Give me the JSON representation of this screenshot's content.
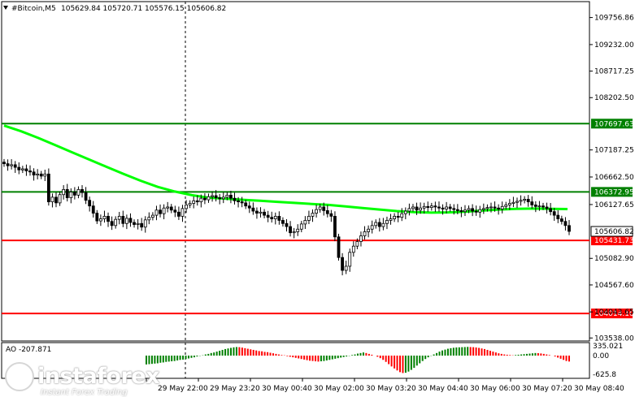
{
  "header": {
    "symbol": "#Bitcoin,M5",
    "ohlc": "105629.84 105720.71 105576.15 105606.82"
  },
  "indicator": {
    "label": "AO -207.871",
    "ticks": [
      "335.021",
      "0.00",
      "-625.8"
    ],
    "ao_values": [
      -310,
      -300,
      -290,
      -280,
      -270,
      -250,
      -240,
      -220,
      -210,
      -200,
      -190,
      -170,
      -150,
      -140,
      -120,
      -100,
      -80,
      -60,
      -30,
      -10,
      10,
      40,
      60,
      90,
      110,
      140,
      170,
      200,
      230,
      250,
      270,
      290,
      300,
      295,
      280,
      260,
      240,
      220,
      200,
      180,
      160,
      150,
      130,
      120,
      100,
      80,
      60,
      40,
      20,
      10,
      -20,
      -40,
      -60,
      -80,
      -100,
      -120,
      -140,
      -160,
      -180,
      -190,
      -200,
      -210,
      -200,
      -190,
      -170,
      -150,
      -130,
      -110,
      -90,
      -70,
      -50,
      -30,
      -10,
      20,
      40,
      70,
      90,
      110,
      90,
      60,
      30,
      0,
      -40,
      -90,
      -150,
      -220,
      -300,
      -380,
      -450,
      -520,
      -580,
      -610,
      -600,
      -560,
      -500,
      -430,
      -350,
      -270,
      -190,
      -120,
      -60,
      -10,
      40,
      90,
      140,
      180,
      210,
      240,
      260,
      275,
      285,
      290,
      295,
      300,
      305,
      300,
      295,
      285,
      270,
      250,
      230,
      200,
      170,
      140,
      110,
      80,
      60,
      40,
      30,
      20,
      10,
      20,
      30,
      40,
      50,
      60,
      70,
      80,
      90,
      85,
      75,
      60,
      40,
      20,
      0,
      -30,
      -70,
      -110,
      -150,
      -190,
      -207.871
    ]
  },
  "price_axis": {
    "ticks": [
      "109756.86",
      "109232.00",
      "108717.25",
      "108202.50",
      "107187.25",
      "106662.50",
      "106127.65",
      "105082.90",
      "104567.60",
      "104043.65",
      "103538.00"
    ],
    "levels": [
      {
        "price": 107697.63,
        "label": "107697.63",
        "color": "#008000"
      },
      {
        "price": 106372.95,
        "label": "106372.95",
        "color": "#008000"
      },
      {
        "price": 105431.73,
        "label": "105431.73",
        "color": "#ff0000"
      },
      {
        "price": 104014.1,
        "label": "104014.10",
        "color": "#ff0000"
      }
    ],
    "current": {
      "price": 105606.82,
      "label": "105606.82"
    }
  },
  "time_axis": {
    "labels": [
      "29 May 22:00",
      "29 May 23:20",
      "30 May 00:40",
      "30 May 02:00",
      "30 May 03:20",
      "30 May 04:40",
      "30 May 06:00",
      "30 May 07:20",
      "30 May 08:40"
    ]
  },
  "chart_data": {
    "type": "candlestick",
    "title": "#Bitcoin,M5",
    "timeframe": "M5",
    "ylim": [
      103538.0,
      109960.0
    ],
    "price_ticks": [
      109756.86,
      109232.0,
      108717.25,
      108202.5,
      107187.25,
      106662.5,
      106127.65,
      105082.9,
      104567.6,
      104043.65,
      103538.0
    ],
    "x_labels": [
      "29 May 22:00",
      "29 May 23:20",
      "30 May 00:40",
      "30 May 02:00",
      "30 May 03:20",
      "30 May 04:40",
      "30 May 06:00",
      "30 May 07:20",
      "30 May 08:40"
    ],
    "horizontal_levels": [
      {
        "price": 107697.63,
        "color": "#008000"
      },
      {
        "price": 106372.95,
        "color": "#008000"
      },
      {
        "price": 105431.73,
        "color": "#ff0000"
      },
      {
        "price": 104014.1,
        "color": "#ff0000"
      }
    ],
    "close_prices": [
      106920,
      106880,
      106900,
      106850,
      106800,
      106820,
      106780,
      106760,
      106700,
      106720,
      106680,
      106720,
      106180,
      106270,
      106160,
      106320,
      106420,
      106260,
      106370,
      106310,
      106420,
      106360,
      106210,
      106100,
      105960,
      105810,
      105850,
      105900,
      105800,
      105720,
      105840,
      105900,
      105760,
      105860,
      105780,
      105740,
      105760,
      105690,
      105830,
      105880,
      105920,
      106020,
      105950,
      106060,
      106080,
      106020,
      105980,
      105900,
      106050,
      106120,
      106150,
      106200,
      106180,
      106250,
      106220,
      106280,
      106300,
      106260,
      106240,
      106270,
      106310,
      106250,
      106200,
      106180,
      106160,
      106100,
      106060,
      106000,
      105960,
      105980,
      105920,
      105880,
      105850,
      105900,
      105820,
      105760,
      105700,
      105580,
      105600,
      105650,
      105750,
      105820,
      105900,
      105960,
      106030,
      106080,
      106010,
      105950,
      105900,
      105500,
      105100,
      104850,
      104930,
      105200,
      105320,
      105410,
      105520,
      105600,
      105650,
      105720,
      105780,
      105700,
      105760,
      105820,
      105850,
      105900,
      105880,
      105950,
      106000,
      106050,
      106080,
      106020,
      106060,
      106090,
      106070,
      106100,
      106080,
      106060,
      106040,
      106080,
      106050,
      106030,
      106010,
      105990,
      106020,
      106050,
      106000,
      105980,
      106030,
      106050,
      106070,
      106080,
      106060,
      106040,
      106090,
      106120,
      106150,
      106170,
      106190,
      106210,
      106230,
      106180,
      106120,
      106090,
      106100,
      106080,
      106050,
      105990,
      105920,
      105850,
      105800,
      105720,
      105606.82
    ],
    "moving_average": {
      "color": "#00ff00",
      "values": [
        107660,
        107550,
        107420,
        107280,
        107140,
        107000,
        106860,
        106720,
        106590,
        106470,
        106380,
        106310,
        106260,
        106240,
        106220,
        106200,
        106180,
        106160,
        106140,
        106120,
        106090,
        106060,
        106030,
        106000,
        105980,
        105970,
        105975,
        105990,
        106010,
        106030,
        106045,
        106050,
        106045,
        106040
      ]
    },
    "current_price": 105606.82
  }
}
